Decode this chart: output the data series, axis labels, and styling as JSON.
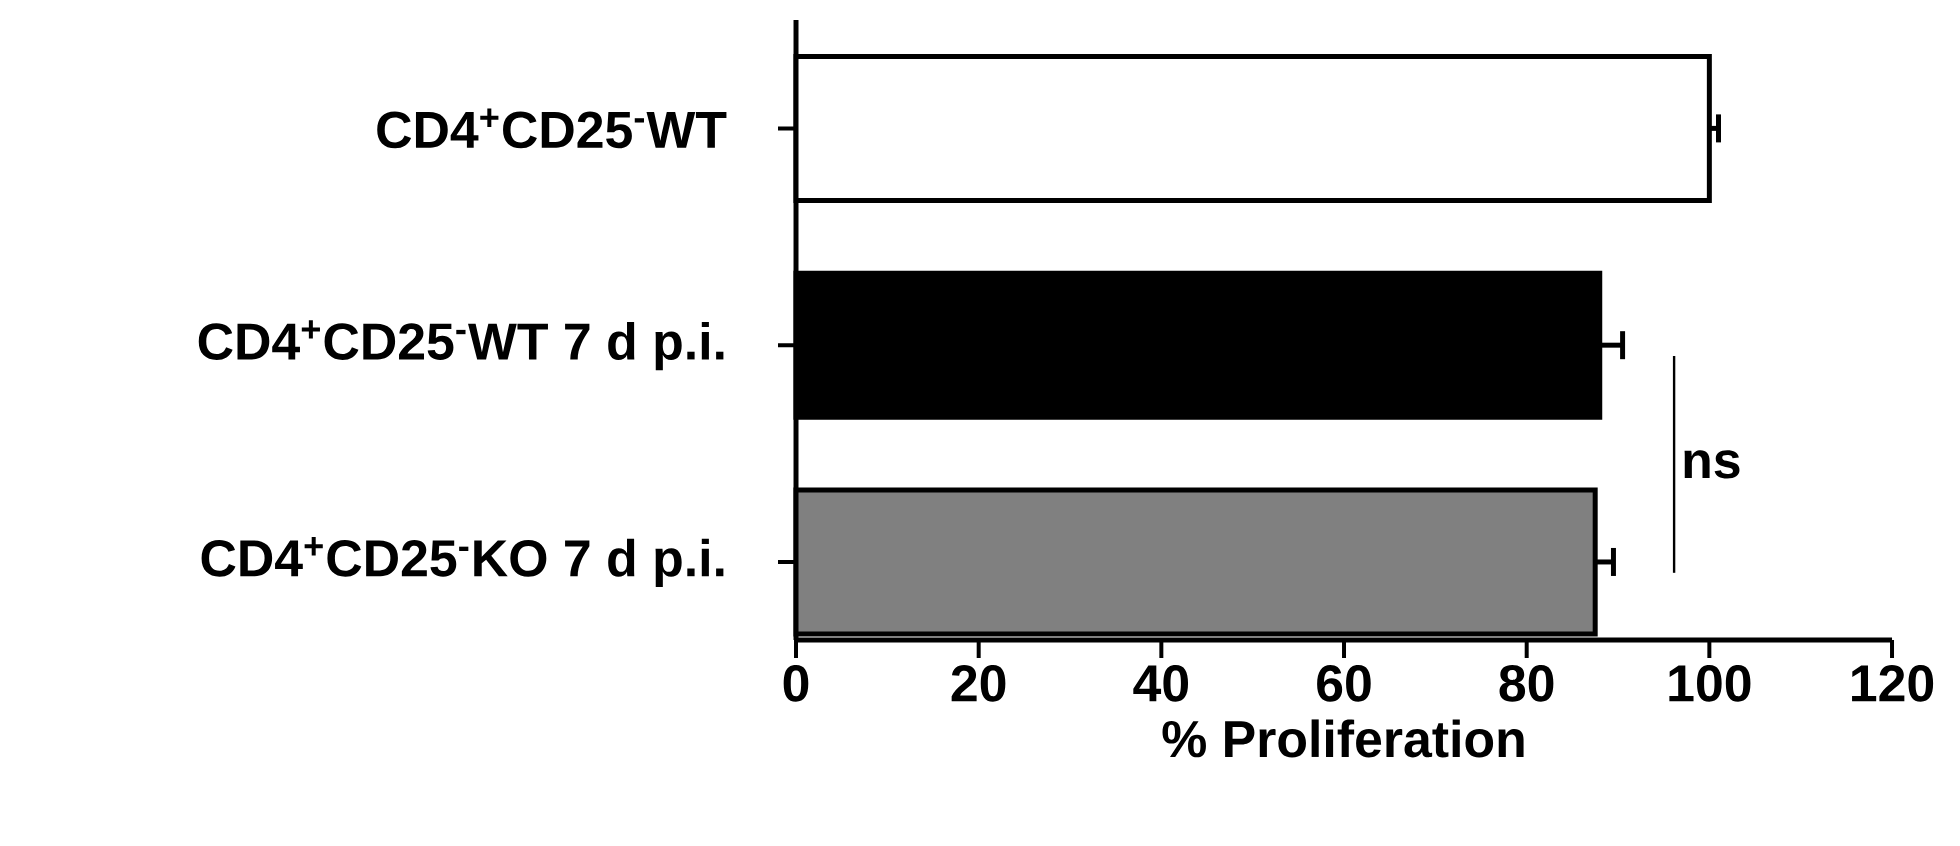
{
  "chart_data": {
    "type": "bar",
    "orientation": "horizontal",
    "xlabel": "% Proliferation",
    "categories": [
      "CD4$^{+}$CD25$^{-}$WT",
      "CD4$^{+}$CD25$^{-}$WT  7 d p.i.",
      "CD4$^{+}$CD25$^{-}$KO  7 d p.i."
    ],
    "values": [
      100,
      88,
      87.5
    ],
    "errors": [
      1,
      2.5,
      2
    ],
    "colors": [
      "#ffffff",
      "#000000",
      "#808080"
    ],
    "xlim": [
      0,
      120
    ],
    "xticks": [
      0,
      20,
      40,
      60,
      80,
      100,
      120
    ],
    "grid": false,
    "annotations": [
      "ns"
    ]
  }
}
